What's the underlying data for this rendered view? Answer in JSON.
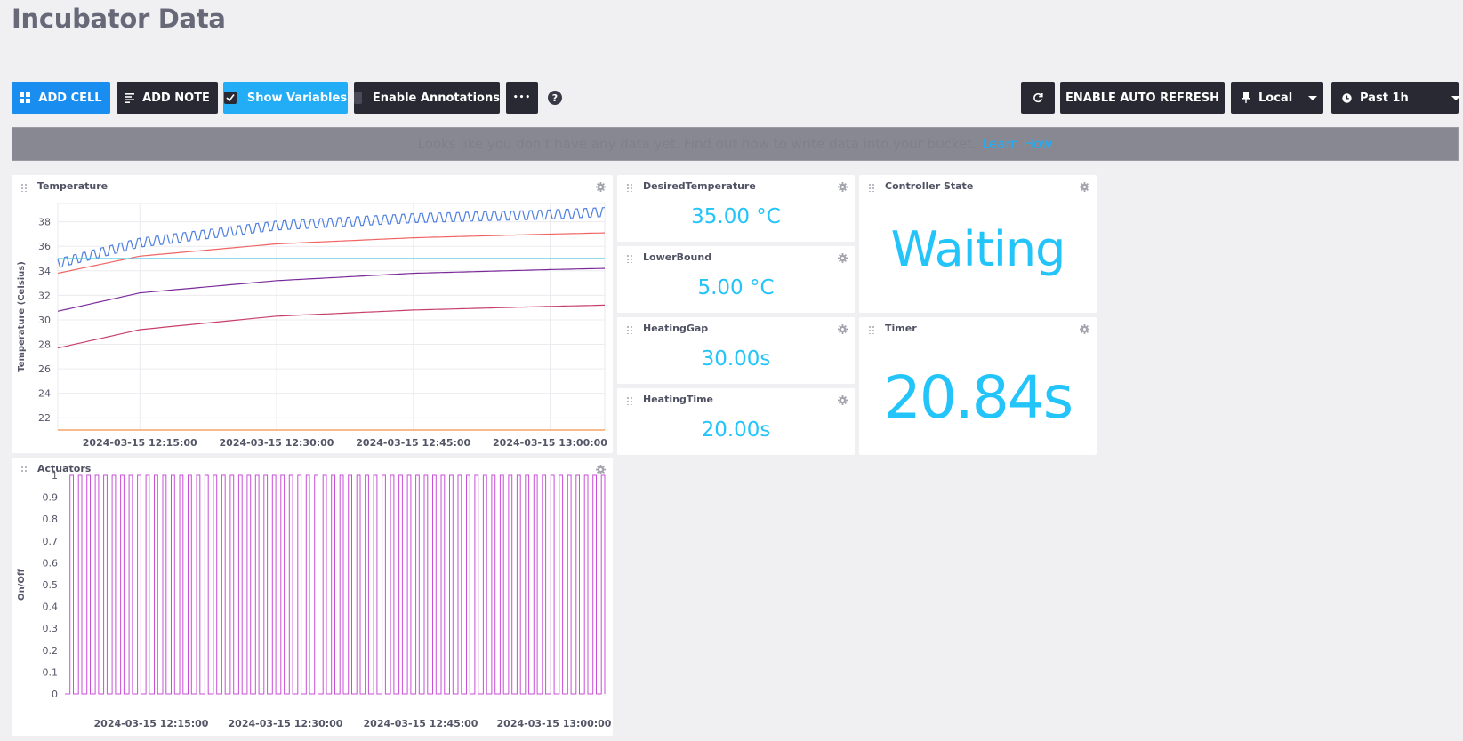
{
  "page": {
    "title": "Incubator Data"
  },
  "toolbar": {
    "add_cell": "ADD CELL",
    "add_note": "ADD NOTE",
    "show_variables": "Show Variables",
    "enable_annotations": "Enable Annotations",
    "more": "•••",
    "help": "?",
    "enable_auto_refresh": "ENABLE AUTO REFRESH",
    "timezone": "Local",
    "time_range": "Past 1h"
  },
  "banner": {
    "hidden_text": "Looks like you don't have any data yet. Find out how to write data into your bucket.",
    "link": "Learn How"
  },
  "colors": {
    "accent_blue": "#1a8ef0",
    "accent_sky": "#22adf6",
    "single_stat": "#22c4f9",
    "actuator_line": "#c94fd8"
  },
  "cells": {
    "temperature": {
      "title": "Temperature"
    },
    "desired": {
      "title": "DesiredTemperature",
      "value": "35.00 °C"
    },
    "lower": {
      "title": "LowerBound",
      "value": "5.00 °C"
    },
    "gap": {
      "title": "HeatingGap",
      "value": "30.00s"
    },
    "htime": {
      "title": "HeatingTime",
      "value": "20.00s"
    },
    "state": {
      "title": "Controller State",
      "value": "Waiting"
    },
    "timer": {
      "title": "Timer",
      "value": "20.84s"
    },
    "actuators": {
      "title": "Actuators"
    }
  },
  "chart_data": [
    {
      "type": "line",
      "title": "Temperature",
      "ylabel": "Temperature (Celsius)",
      "xlabel": "",
      "ylim": [
        21,
        39.5
      ],
      "yticks": [
        22,
        24,
        26,
        28,
        30,
        32,
        34,
        36,
        38
      ],
      "x_ticks": [
        "2024-03-15 12:15:00",
        "2024-03-15 12:30:00",
        "2024-03-15 12:45:00",
        "2024-03-15 13:00:00"
      ],
      "grid": true,
      "x": [
        "12:06",
        "12:15",
        "12:30",
        "12:45",
        "13:00",
        "13:06"
      ],
      "series": [
        {
          "color": "#4f7fe0",
          "values": [
            34.6,
            36.3,
            37.7,
            38.3,
            38.6,
            38.8
          ],
          "oscillation": 0.6
        },
        {
          "color": "#f06464",
          "values": [
            33.8,
            35.2,
            36.2,
            36.7,
            37.0,
            37.1
          ]
        },
        {
          "color": "#4fc8dc",
          "values": [
            35.0,
            35.0,
            35.0,
            35.0,
            35.0,
            35.0
          ]
        },
        {
          "color": "#7a2a9a",
          "values": [
            30.7,
            32.2,
            33.2,
            33.8,
            34.1,
            34.2
          ]
        },
        {
          "color": "#c7406a",
          "values": [
            27.7,
            29.2,
            30.3,
            30.8,
            31.1,
            31.2
          ]
        },
        {
          "color": "#f5904a",
          "values": [
            21.0,
            21.0,
            21.0,
            21.0,
            21.0,
            21.0
          ]
        }
      ]
    },
    {
      "type": "line",
      "title": "Actuators",
      "ylabel": "On/Off",
      "xlabel": "",
      "ylim": [
        0,
        1
      ],
      "yticks": [
        0,
        0.1,
        0.2,
        0.3,
        0.4,
        0.5,
        0.6,
        0.7,
        0.8,
        0.9,
        1
      ],
      "x_ticks": [
        "2024-03-15 12:15:00",
        "2024-03-15 12:30:00",
        "2024-03-15 12:45:00",
        "2024-03-15 13:00:00"
      ],
      "grid": false,
      "series": [
        {
          "color": "#c94fd8",
          "pulse_count": 64,
          "duty_cycle": 0.4,
          "values": [
            0,
            1
          ]
        }
      ]
    }
  ]
}
